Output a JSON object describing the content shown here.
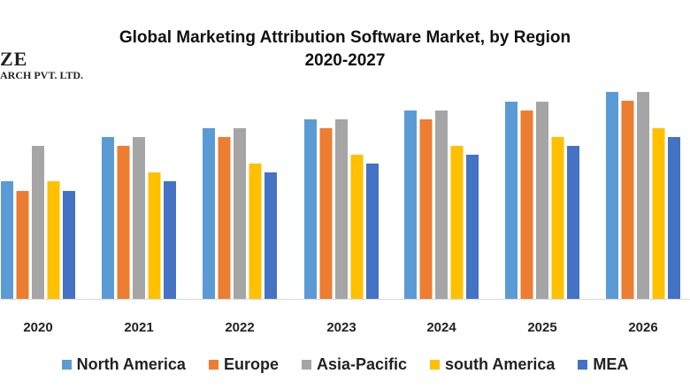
{
  "logo": {
    "line1": "ZE",
    "line2": "ARCH PVT. LTD."
  },
  "chart_data": {
    "type": "bar",
    "title": "Global Marketing Attribution Software Market, by Region",
    "subtitle": "2020-2027",
    "xlabel": "",
    "ylabel": "",
    "categories": [
      "2020",
      "2021",
      "2022",
      "2023",
      "2024",
      "2025",
      "2026"
    ],
    "series": [
      {
        "name": "North America",
        "color": "#5B9BD5",
        "values": [
          13.3,
          18.3,
          19.3,
          20.3,
          21.3,
          22.3,
          23.4
        ]
      },
      {
        "name": "Europe",
        "color": "#ED7D31",
        "values": [
          12.2,
          17.3,
          18.3,
          19.3,
          20.3,
          21.3,
          22.4
        ]
      },
      {
        "name": "Asia-Pacific",
        "color": "#A5A5A5",
        "values": [
          17.3,
          18.3,
          19.3,
          20.3,
          21.3,
          22.3,
          23.4
        ]
      },
      {
        "name": "south America",
        "color": "#FFC000",
        "values": [
          13.3,
          14.3,
          15.3,
          16.3,
          17.3,
          18.3,
          19.3
        ]
      },
      {
        "name": "MEA",
        "color": "#4472C4",
        "values": [
          12.2,
          13.3,
          14.3,
          15.3,
          16.3,
          17.3,
          18.3
        ]
      }
    ],
    "ylim": [
      0,
      25
    ],
    "grid": false,
    "legend": "bottom"
  }
}
